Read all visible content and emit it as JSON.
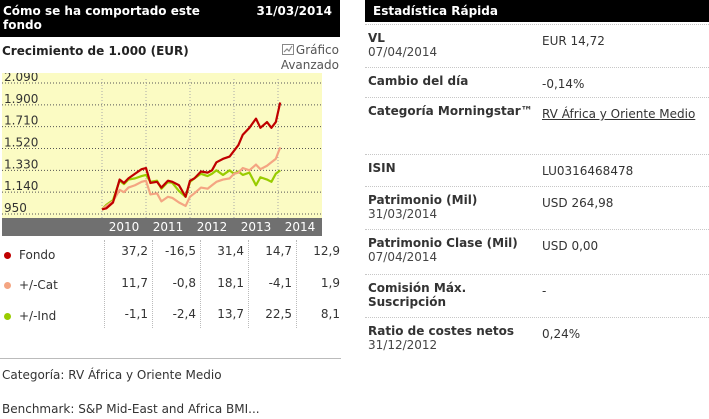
{
  "left_panel": {
    "header_title": "Cómo se ha comportado este fondo",
    "header_date": "31/03/2014",
    "growth_title": "Crecimiento de 1.000 (EUR)",
    "advanced_line1": "Gráfico",
    "advanced_line2": "Avanzado",
    "advanced_icon": "chart-icon",
    "category_text": "Categoría: RV África y Oriente Medio",
    "benchmark_text": "Benchmark: S&P Mid-East and Africa BMI..."
  },
  "chart_data": {
    "type": "line",
    "yticks": [
      "2.090",
      "1.900",
      "1.710",
      "1.520",
      "1.330",
      "1.140",
      "950"
    ],
    "ylim": [
      950,
      2090
    ],
    "xticks": [
      "2010",
      "2011",
      "2012",
      "2013",
      "2014"
    ],
    "background": "#fbfbc3",
    "xband_color": "#707070",
    "series": [
      {
        "name": "Fondo",
        "color": "#c00000",
        "x": [
          0,
          0.1,
          0.25,
          0.4,
          0.5,
          0.6,
          0.75,
          0.9,
          1.0,
          1.1,
          1.25,
          1.35,
          1.5,
          1.6,
          1.75,
          1.9,
          2.0,
          2.1,
          2.25,
          2.4,
          2.5,
          2.6,
          2.75,
          2.9,
          3.0,
          3.1,
          3.2,
          3.35,
          3.5,
          3.6,
          3.75,
          3.85,
          3.95,
          4.05
        ],
        "y": [
          990,
          1000,
          1050,
          1250,
          1220,
          1260,
          1300,
          1340,
          1350,
          1220,
          1230,
          1180,
          1240,
          1230,
          1200,
          1100,
          1240,
          1260,
          1320,
          1310,
          1330,
          1400,
          1430,
          1450,
          1500,
          1550,
          1640,
          1700,
          1780,
          1700,
          1750,
          1700,
          1750,
          1920
        ]
      },
      {
        "name": "+/-Cat",
        "color": "#f4a582",
        "x": [
          0,
          0.1,
          0.25,
          0.4,
          0.5,
          0.6,
          0.75,
          0.9,
          1.0,
          1.1,
          1.25,
          1.35,
          1.5,
          1.6,
          1.75,
          1.9,
          2.0,
          2.1,
          2.25,
          2.4,
          2.5,
          2.6,
          2.75,
          2.9,
          3.0,
          3.1,
          3.2,
          3.35,
          3.5,
          3.6,
          3.75,
          3.85,
          3.95,
          4.05
        ],
        "y": [
          990,
          1020,
          1060,
          1160,
          1140,
          1180,
          1200,
          1230,
          1240,
          1120,
          1130,
          1060,
          1100,
          1090,
          1050,
          1020,
          1100,
          1130,
          1180,
          1170,
          1200,
          1230,
          1250,
          1260,
          1300,
          1310,
          1350,
          1330,
          1380,
          1340,
          1370,
          1400,
          1430,
          1530
        ]
      },
      {
        "name": "+/-Ind",
        "color": "#99cc00",
        "x": [
          0,
          0.1,
          0.25,
          0.4,
          0.5,
          0.6,
          0.75,
          0.9,
          1.0,
          1.1,
          1.25,
          1.35,
          1.5,
          1.6,
          1.75,
          1.9,
          2.0,
          2.1,
          2.25,
          2.4,
          2.5,
          2.6,
          2.75,
          2.9,
          3.0,
          3.1,
          3.2,
          3.35,
          3.5,
          3.6,
          3.75,
          3.85,
          3.95,
          4.05
        ],
        "y": [
          990,
          1030,
          1070,
          1240,
          1210,
          1250,
          1260,
          1280,
          1290,
          1230,
          1240,
          1170,
          1230,
          1220,
          1150,
          1100,
          1230,
          1260,
          1300,
          1280,
          1300,
          1330,
          1290,
          1330,
          1300,
          1320,
          1290,
          1310,
          1200,
          1270,
          1250,
          1230,
          1300,
          1330
        ]
      }
    ]
  },
  "returns_table": {
    "rows": [
      {
        "label": "Fondo",
        "color": "#c00000",
        "values": [
          "37,2",
          "-16,5",
          "31,4",
          "14,7",
          "12,9"
        ]
      },
      {
        "label": "+/-Cat",
        "color": "#f4a582",
        "values": [
          "11,7",
          "-0,8",
          "18,1",
          "-4,1",
          "1,9"
        ]
      },
      {
        "label": "+/-Ind",
        "color": "#99cc00",
        "values": [
          "-1,1",
          "-2,4",
          "13,7",
          "22,5",
          "8,1"
        ]
      }
    ]
  },
  "right_panel": {
    "title": "Estadística Rápida",
    "rows": [
      {
        "label": "VL",
        "sub": "07/04/2014",
        "value": "EUR 14,72",
        "link": false
      },
      {
        "label": "Cambio del día",
        "sub": "",
        "value": "-0,14%",
        "link": false
      },
      {
        "label": "Categoría Morningstar™",
        "sub": "",
        "value": "RV África y Oriente Medio",
        "link": true
      },
      {
        "label": "ISIN",
        "sub": "",
        "value": "LU0316468478",
        "link": false
      },
      {
        "label": "Patrimonio (Mil)",
        "sub": "31/03/2014",
        "value": "USD 264,98",
        "link": false
      },
      {
        "label": "Patrimonio Clase (Mil)",
        "sub": "07/04/2014",
        "value": "USD 0,00",
        "link": false
      },
      {
        "label": "Comisión Máx. Suscripción",
        "sub": "",
        "value": "-",
        "link": false
      },
      {
        "label": "Ratio de costes netos",
        "sub": "31/12/2012",
        "value": "0,24%",
        "link": false
      }
    ]
  }
}
